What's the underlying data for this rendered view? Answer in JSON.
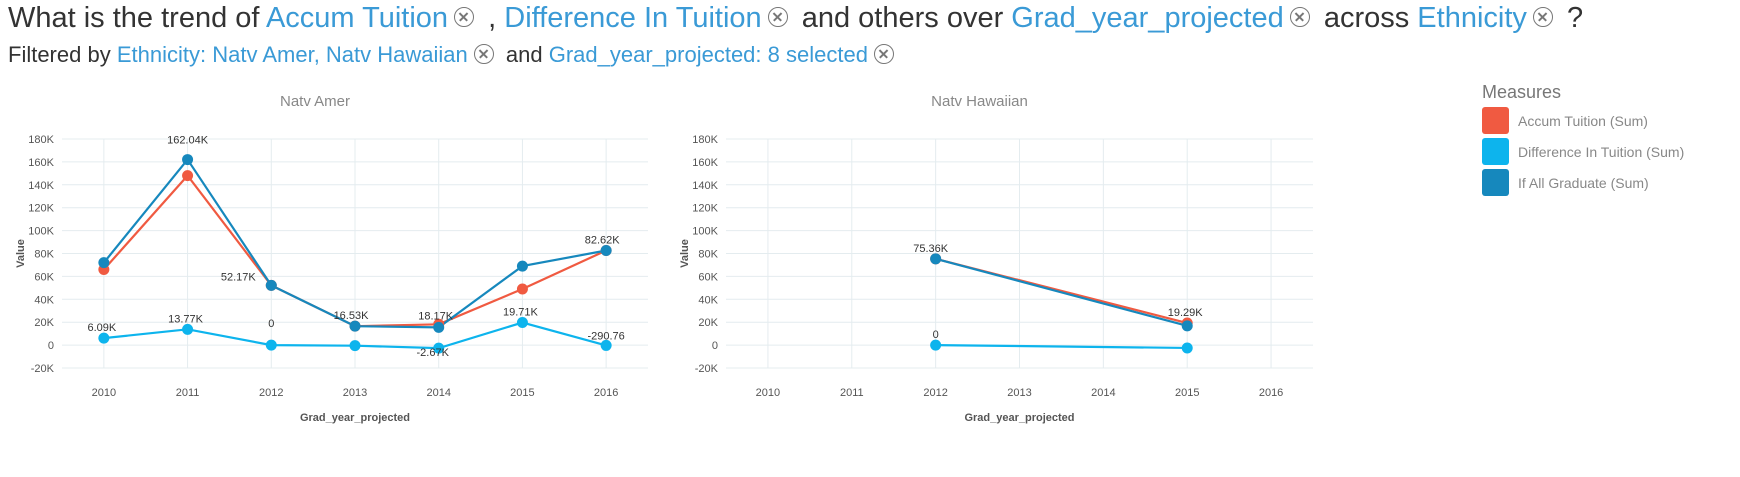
{
  "question": {
    "prefix": "What is the trend of",
    "measure1": "Accum Tuition",
    "comma": ",",
    "measure2": "Difference In Tuition",
    "mid1": "and others over",
    "dim1": "Grad_year_projected",
    "mid2": "across",
    "dim2": "Ethnicity",
    "suffix": "?"
  },
  "filters": {
    "prefix": "Filtered by",
    "filter1": "Ethnicity: Natv Amer, Natv Hawaiian",
    "mid": "and",
    "filter2": "Grad_year_projected: 8 selected"
  },
  "legend": {
    "title": "Measures",
    "items": [
      {
        "label": "Accum Tuition (Sum)",
        "color": "#f05a41"
      },
      {
        "label": "Difference In Tuition (Sum)",
        "color": "#0db4ed"
      },
      {
        "label": "If All Graduate (Sum)",
        "color": "#1688bd"
      }
    ]
  },
  "chart_data": [
    {
      "type": "line",
      "title": "Natv Amer",
      "xlabel": "Grad_year_projected",
      "ylabel": "Value",
      "x": [
        2010,
        2011,
        2012,
        2013,
        2014,
        2015,
        2016
      ],
      "ylim": [
        -20000,
        180000
      ],
      "yticks": [
        "-20K",
        "0",
        "20K",
        "40K",
        "60K",
        "80K",
        "100K",
        "120K",
        "140K",
        "160K",
        "180K"
      ],
      "series": [
        {
          "name": "Accum Tuition (Sum)",
          "color": "#f05a41",
          "values": [
            66000,
            148000,
            52170,
            16530,
            18170,
            49000,
            82620
          ]
        },
        {
          "name": "Difference In Tuition (Sum)",
          "color": "#0db4ed",
          "values": [
            6090,
            13770,
            0,
            -500,
            -2670,
            19710,
            -290.76
          ]
        },
        {
          "name": "If All Graduate (Sum)",
          "color": "#1688bd",
          "values": [
            72000,
            162040,
            52170,
            16530,
            15500,
            69000,
            82620
          ]
        }
      ],
      "data_labels": [
        {
          "text": "6.09K",
          "x": 2010,
          "y": 6090
        },
        {
          "text": "13.77K",
          "x": 2011,
          "y": 13770
        },
        {
          "text": "162.04K",
          "x": 2011,
          "y": 162040
        },
        {
          "text": "0",
          "x": 2012,
          "y": 0
        },
        {
          "text": "52.17K",
          "x": 2012,
          "y": 52170
        },
        {
          "text": "16.53K",
          "x": 2013,
          "y": 16530
        },
        {
          "text": "18.17K",
          "x": 2014,
          "y": 18170
        },
        {
          "text": "-2.67K",
          "x": 2014,
          "y": -2670
        },
        {
          "text": "19.71K",
          "x": 2015,
          "y": 19710
        },
        {
          "text": "82.62K",
          "x": 2016,
          "y": 82620
        },
        {
          "text": "-290.76",
          "x": 2016,
          "y": -290.76
        }
      ]
    },
    {
      "type": "line",
      "title": "Natv Hawaiian",
      "xlabel": "Grad_year_projected",
      "ylabel": "Value",
      "x": [
        2010,
        2011,
        2012,
        2013,
        2014,
        2015,
        2016
      ],
      "ylim": [
        -20000,
        180000
      ],
      "yticks": [
        "-20K",
        "0",
        "20K",
        "40K",
        "60K",
        "80K",
        "100K",
        "120K",
        "140K",
        "160K",
        "180K"
      ],
      "series": [
        {
          "name": "Accum Tuition (Sum)",
          "color": "#f05a41",
          "x": [
            2012,
            2015
          ],
          "values": [
            75360,
            19290
          ]
        },
        {
          "name": "Difference In Tuition (Sum)",
          "color": "#0db4ed",
          "x": [
            2012,
            2015
          ],
          "values": [
            0,
            -2500
          ]
        },
        {
          "name": "If All Graduate (Sum)",
          "color": "#1688bd",
          "x": [
            2012,
            2015
          ],
          "values": [
            75360,
            16800
          ]
        }
      ],
      "data_labels": [
        {
          "text": "75.36K",
          "x": 2012,
          "y": 75360
        },
        {
          "text": "0",
          "x": 2012,
          "y": 0
        },
        {
          "text": "19.29K",
          "x": 2015,
          "y": 19290
        }
      ]
    }
  ]
}
